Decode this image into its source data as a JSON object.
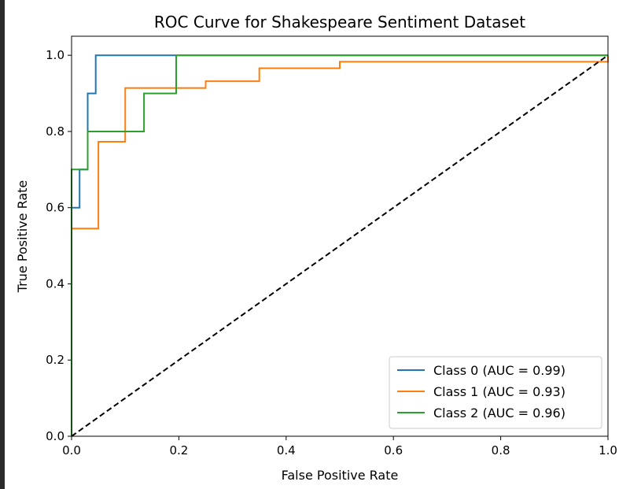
{
  "chart_data": {
    "type": "line",
    "title": "ROC Curve for Shakespeare Sentiment Dataset",
    "xlabel": "False Positive Rate",
    "ylabel": "True Positive Rate",
    "xlim": [
      0.0,
      1.0
    ],
    "ylim": [
      0.0,
      1.05
    ],
    "xticks": [
      0.0,
      0.2,
      0.4,
      0.6,
      0.8,
      1.0
    ],
    "yticks": [
      0.0,
      0.2,
      0.4,
      0.6,
      0.8,
      1.0
    ],
    "xtick_labels": [
      "0.0",
      "0.2",
      "0.4",
      "0.6",
      "0.8",
      "1.0"
    ],
    "ytick_labels": [
      "0.0",
      "0.2",
      "0.4",
      "0.6",
      "0.8",
      "1.0"
    ],
    "grid": false,
    "legend_position": "lower-right",
    "series": [
      {
        "name": "Class 0 (AUC = 0.99)",
        "color": "#1f77b4",
        "x": [
          0.0,
          0.0,
          0.015,
          0.015,
          0.03,
          0.03,
          0.045,
          0.045,
          1.0
        ],
        "y": [
          0.0,
          0.6,
          0.6,
          0.7,
          0.7,
          0.9,
          0.9,
          1.0,
          1.0
        ]
      },
      {
        "name": "Class 1 (AUC = 0.93)",
        "color": "#ff7f0e",
        "x": [
          0.0,
          0.0,
          0.05,
          0.05,
          0.1,
          0.1,
          0.25,
          0.25,
          0.35,
          0.35,
          0.5,
          0.5,
          1.0,
          1.0
        ],
        "y": [
          0.0,
          0.545,
          0.545,
          0.773,
          0.773,
          0.914,
          0.914,
          0.932,
          0.932,
          0.966,
          0.966,
          0.983,
          0.983,
          1.0
        ]
      },
      {
        "name": "Class 2 (AUC = 0.96)",
        "color": "#2ca02c",
        "x": [
          0.0,
          0.0,
          0.03,
          0.03,
          0.135,
          0.135,
          0.195,
          0.195,
          1.0
        ],
        "y": [
          0.0,
          0.7,
          0.7,
          0.8,
          0.8,
          0.9,
          0.9,
          1.0,
          1.0
        ]
      },
      {
        "color": "#000000",
        "dashed": true,
        "x": [
          0.0,
          1.0
        ],
        "y": [
          0.0,
          1.0
        ]
      }
    ]
  }
}
